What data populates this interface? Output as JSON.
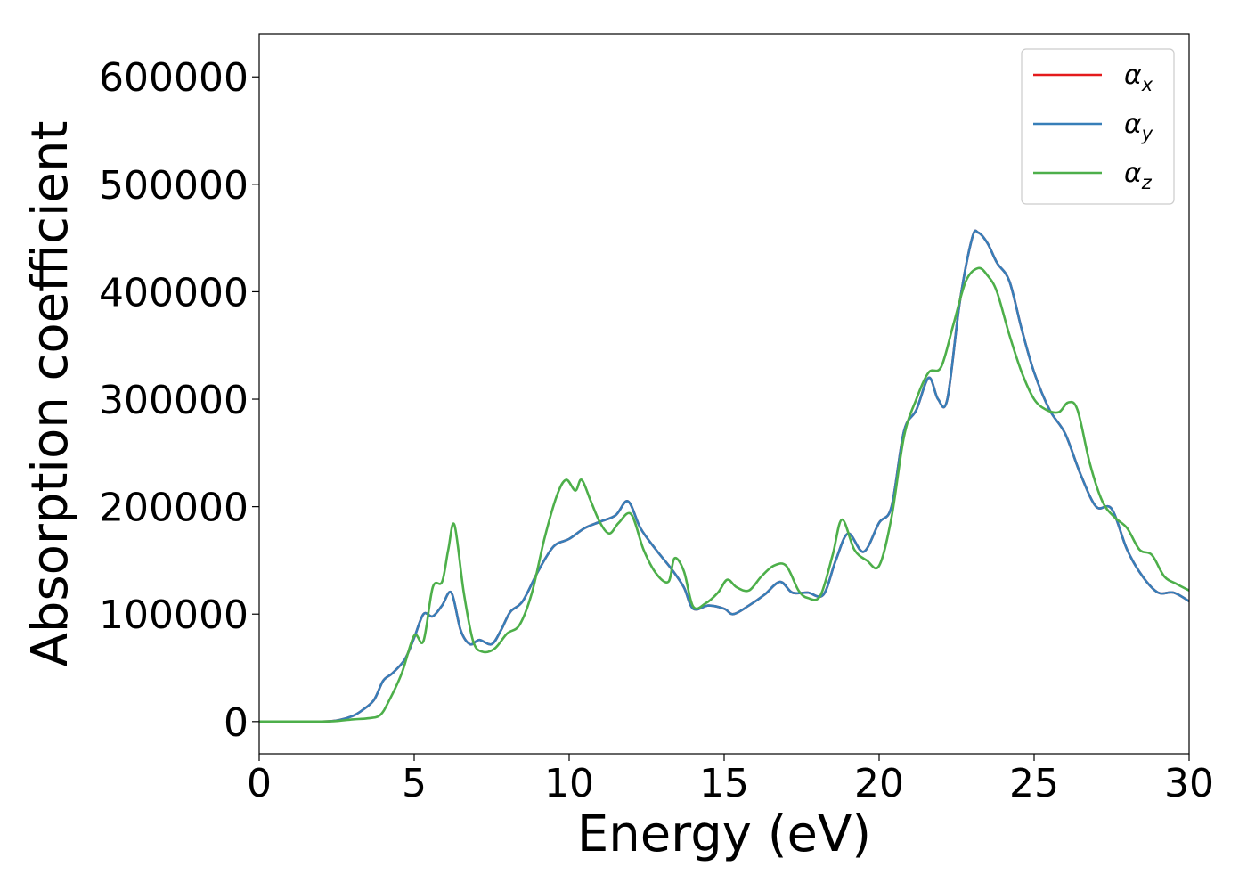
{
  "chart_data": {
    "type": "line",
    "title": "",
    "xlabel": "Energy (eV)",
    "ylabel": "Absorption coefficient",
    "xlim": [
      0,
      30
    ],
    "ylim": [
      -30000,
      640000
    ],
    "xticks": [
      "0",
      "5",
      "10",
      "15",
      "20",
      "25",
      "30"
    ],
    "yticks": [
      "0",
      "100000",
      "200000",
      "300000",
      "400000",
      "500000",
      "600000"
    ],
    "grid": false,
    "legend": {
      "position": "top-right",
      "entries": [
        {
          "base": "α",
          "sub": "x"
        },
        {
          "base": "α",
          "sub": "y"
        },
        {
          "base": "α",
          "sub": "z"
        }
      ]
    },
    "series": [
      {
        "name": "αx",
        "color": "#e41a1c",
        "x": [
          0,
          1,
          2,
          2.5,
          3,
          3.3,
          3.7,
          4,
          4.3,
          4.7,
          5,
          5.3,
          5.6,
          5.9,
          6.2,
          6.5,
          6.8,
          7.1,
          7.5,
          7.8,
          8.1,
          8.5,
          9,
          9.5,
          10,
          10.5,
          11,
          11.5,
          11.9,
          12.3,
          12.8,
          13.3,
          13.7,
          14,
          14.5,
          15,
          15.3,
          15.8,
          16.3,
          16.8,
          17.2,
          17.7,
          18.2,
          18.6,
          19,
          19.5,
          20,
          20.4,
          20.8,
          21.2,
          21.6,
          21.9,
          22.2,
          22.6,
          23,
          23.2,
          23.5,
          23.8,
          24.2,
          24.6,
          25,
          25.5,
          26,
          26.5,
          27,
          27.5,
          28,
          28.5,
          29,
          29.5,
          30
        ],
        "values": [
          0,
          0,
          0,
          1000,
          5000,
          10000,
          20000,
          38000,
          45000,
          58000,
          78000,
          100000,
          98000,
          108000,
          120000,
          85000,
          72000,
          76000,
          72000,
          85000,
          102000,
          112000,
          140000,
          163000,
          170000,
          180000,
          186000,
          192000,
          205000,
          180000,
          160000,
          142000,
          125000,
          105000,
          108000,
          105000,
          100000,
          108000,
          118000,
          130000,
          120000,
          120000,
          118000,
          150000,
          175000,
          158000,
          185000,
          200000,
          270000,
          290000,
          320000,
          300000,
          300000,
          390000,
          450000,
          455000,
          445000,
          427000,
          410000,
          365000,
          325000,
          290000,
          268000,
          230000,
          200000,
          198000,
          160000,
          135000,
          120000,
          120000,
          112000
        ]
      },
      {
        "name": "αy",
        "color": "#377eb8",
        "x": [
          0,
          1,
          2,
          2.5,
          3,
          3.3,
          3.7,
          4,
          4.3,
          4.7,
          5,
          5.3,
          5.6,
          5.9,
          6.2,
          6.5,
          6.8,
          7.1,
          7.5,
          7.8,
          8.1,
          8.5,
          9,
          9.5,
          10,
          10.5,
          11,
          11.5,
          11.9,
          12.3,
          12.8,
          13.3,
          13.7,
          14,
          14.5,
          15,
          15.3,
          15.8,
          16.3,
          16.8,
          17.2,
          17.7,
          18.2,
          18.6,
          19,
          19.5,
          20,
          20.4,
          20.8,
          21.2,
          21.6,
          21.9,
          22.2,
          22.6,
          23,
          23.2,
          23.5,
          23.8,
          24.2,
          24.6,
          25,
          25.5,
          26,
          26.5,
          27,
          27.5,
          28,
          28.5,
          29,
          29.5,
          30
        ],
        "values": [
          0,
          0,
          0,
          1000,
          5000,
          10000,
          20000,
          38000,
          45000,
          58000,
          78000,
          100000,
          98000,
          108000,
          120000,
          85000,
          72000,
          76000,
          72000,
          85000,
          102000,
          112000,
          140000,
          163000,
          170000,
          180000,
          186000,
          192000,
          205000,
          180000,
          160000,
          142000,
          125000,
          105000,
          108000,
          105000,
          100000,
          108000,
          118000,
          130000,
          120000,
          120000,
          118000,
          150000,
          175000,
          158000,
          185000,
          200000,
          270000,
          290000,
          320000,
          300000,
          300000,
          390000,
          450000,
          455000,
          445000,
          427000,
          410000,
          365000,
          325000,
          290000,
          268000,
          230000,
          200000,
          198000,
          160000,
          135000,
          120000,
          120000,
          112000
        ]
      },
      {
        "name": "αz",
        "color": "#4daf4a",
        "x": [
          0,
          1,
          2,
          2.5,
          3,
          3.5,
          3.9,
          4.2,
          4.6,
          5,
          5.3,
          5.6,
          5.9,
          6.1,
          6.3,
          6.6,
          6.9,
          7.2,
          7.6,
          8,
          8.4,
          8.8,
          9.2,
          9.6,
          9.9,
          10.2,
          10.4,
          10.7,
          11,
          11.3,
          11.6,
          12,
          12.4,
          12.8,
          13.2,
          13.4,
          13.7,
          14,
          14.4,
          14.8,
          15.1,
          15.4,
          15.8,
          16.2,
          16.6,
          17,
          17.4,
          17.7,
          18.1,
          18.5,
          18.8,
          19.2,
          19.6,
          20,
          20.4,
          20.8,
          21.2,
          21.6,
          22,
          22.4,
          22.8,
          23.2,
          23.5,
          23.8,
          24.2,
          24.6,
          25,
          25.4,
          25.8,
          26.1,
          26.4,
          26.8,
          27.2,
          27.6,
          28,
          28.4,
          28.8,
          29.2,
          29.6,
          30
        ],
        "values": [
          0,
          0,
          0,
          500,
          2000,
          3000,
          6000,
          20000,
          45000,
          80000,
          75000,
          125000,
          130000,
          160000,
          183000,
          120000,
          75000,
          65000,
          68000,
          82000,
          90000,
          120000,
          170000,
          210000,
          225000,
          215000,
          225000,
          205000,
          185000,
          175000,
          185000,
          193000,
          160000,
          138000,
          130000,
          152000,
          140000,
          107000,
          110000,
          120000,
          132000,
          125000,
          122000,
          135000,
          145000,
          145000,
          122000,
          115000,
          117000,
          155000,
          188000,
          160000,
          150000,
          145000,
          190000,
          265000,
          300000,
          325000,
          330000,
          370000,
          410000,
          422000,
          415000,
          400000,
          360000,
          325000,
          300000,
          290000,
          288000,
          297000,
          290000,
          240000,
          205000,
          190000,
          180000,
          160000,
          155000,
          135000,
          128000,
          122000
        ]
      }
    ]
  }
}
